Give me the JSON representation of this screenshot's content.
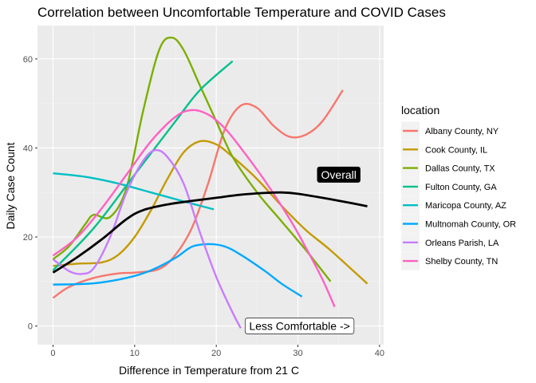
{
  "chart_data": {
    "type": "line",
    "title": "Correlation between Uncomfortable Temperature and COVID Cases",
    "xlabel": "Difference in Temperature from 21 C",
    "ylabel": "Daily Case Count",
    "xlim": [
      -1.9,
      40.5
    ],
    "ylim": [
      -4.2,
      67.5
    ],
    "x_ticks": [
      0,
      10,
      20,
      30,
      40
    ],
    "y_ticks": [
      0,
      20,
      40,
      60
    ],
    "grid": true,
    "legend": {
      "title": "location",
      "position": "right"
    },
    "annotations": [
      {
        "text": "Overall",
        "x": 35,
        "y": 34,
        "style": "dark-box"
      },
      {
        "text": "Less Comfortable ->",
        "x": 30.2,
        "y": 0,
        "style": "outline-box"
      }
    ],
    "series": [
      {
        "name": "Albany County, NY",
        "color": "#F8766D",
        "x": [
          0,
          2,
          5,
          8,
          10,
          13,
          15,
          17,
          19,
          21,
          23,
          25,
          27,
          29,
          31,
          33,
          35.5
        ],
        "y": [
          6.3,
          8.8,
          10.8,
          11.8,
          12,
          12.8,
          16,
          22,
          32,
          44,
          49.5,
          49,
          45,
          42.5,
          43,
          46,
          53
        ]
      },
      {
        "name": "Cook County, IL",
        "color": "#C49A00",
        "x": [
          0,
          3,
          6,
          8,
          10,
          12,
          14,
          16,
          18,
          20,
          22,
          25,
          28,
          31,
          34,
          38.5
        ],
        "y": [
          13.5,
          14,
          14.3,
          16,
          20,
          26,
          33,
          39,
          41.5,
          40.8,
          38,
          33,
          27,
          21.5,
          17,
          9.5
        ]
      },
      {
        "name": "Dallas County, TX",
        "color": "#7CAE00",
        "x": [
          0,
          2,
          4,
          5,
          7,
          9,
          11,
          13,
          14.5,
          16,
          18,
          20,
          22,
          25,
          28,
          31,
          34
        ],
        "y": [
          15,
          18,
          23,
          25,
          24.5,
          31,
          48,
          62,
          64.8,
          62,
          54,
          46,
          38,
          30,
          23.5,
          17,
          10
        ]
      },
      {
        "name": "Fulton County, GA",
        "color": "#00C08B",
        "x": [
          0,
          5,
          10,
          15,
          18,
          22
        ],
        "y": [
          12.5,
          22,
          34,
          46,
          53,
          59.5
        ]
      },
      {
        "name": "Maricopa County, AZ",
        "color": "#00BFC4",
        "x": [
          0,
          4,
          8,
          12,
          16,
          19.7
        ],
        "y": [
          34.3,
          33.5,
          32,
          30,
          28,
          26.2
        ]
      },
      {
        "name": "Multnomah County, OR",
        "color": "#00A9FF",
        "x": [
          0,
          5,
          9,
          12,
          15,
          17,
          19,
          21,
          23,
          26,
          28,
          30.5
        ],
        "y": [
          9.3,
          9.6,
          10.8,
          12.5,
          15.3,
          17.8,
          18.4,
          17.9,
          16,
          12.3,
          9.5,
          6.6
        ]
      },
      {
        "name": "Orleans Parish, LA",
        "color": "#C77CFF",
        "x": [
          0,
          2,
          3.5,
          5,
          7,
          9,
          11,
          12.5,
          14,
          16,
          18,
          20,
          22,
          23
        ],
        "y": [
          15,
          12.3,
          11.7,
          13,
          20,
          30,
          37,
          39.5,
          38,
          32,
          21,
          11,
          3,
          -0.5
        ]
      },
      {
        "name": "Shelby County, TN",
        "color": "#FF61C3",
        "x": [
          0,
          3,
          6,
          9,
          12,
          15,
          17,
          19,
          21,
          23,
          26,
          29,
          31,
          33,
          34.5
        ],
        "y": [
          15.8,
          20,
          26.5,
          34,
          41.5,
          47,
          48.5,
          47.5,
          44.5,
          40,
          32.5,
          24,
          17.5,
          10.5,
          4.3
        ]
      },
      {
        "name": "Overall",
        "color": "#000000",
        "in_legend": false,
        "x": [
          0,
          3,
          6,
          9,
          11,
          14,
          17,
          20,
          23,
          26,
          28,
          30,
          33,
          36,
          38.5
        ],
        "y": [
          12,
          15.5,
          19.5,
          24,
          26,
          27.3,
          28.1,
          28.8,
          29.5,
          29.9,
          30,
          29.7,
          28.8,
          27.8,
          26.9
        ]
      }
    ]
  }
}
